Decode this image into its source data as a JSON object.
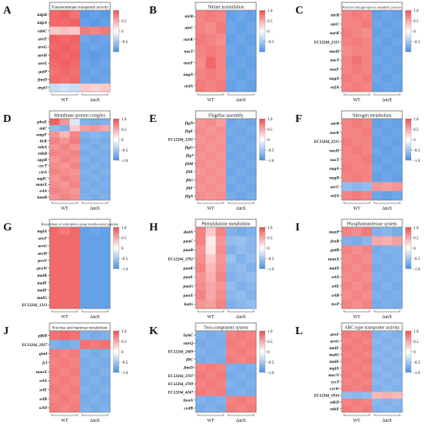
{
  "figure": {
    "colorbar_range": [
      -1.0,
      1.0
    ],
    "color_low": "#4a90e2",
    "color_mid": "#ffffff",
    "color_high": "#ef4f4f"
  },
  "chart_data": [
    {
      "type": "heatmap",
      "letter": "A",
      "title": "Transmembrane transporter activity",
      "groups": [
        "WT",
        "ΔntX"
      ],
      "rows": [
        "kdpB",
        "kdpA",
        "xdaC",
        "areF",
        "areG",
        "areH",
        "areE",
        "galP",
        "fimD",
        "argO"
      ],
      "ticks": [
        "0.5",
        "0",
        "-0.5"
      ],
      "values": [
        [
          0.85,
          0.9,
          0.8,
          -0.9,
          -0.85,
          -0.9
        ],
        [
          0.85,
          0.85,
          0.9,
          -0.85,
          -0.9,
          -0.85
        ],
        [
          0.3,
          0.35,
          0.3,
          0.75,
          0.7,
          0.75
        ],
        [
          0.9,
          0.85,
          0.9,
          -0.8,
          -0.85,
          -0.8
        ],
        [
          0.85,
          0.9,
          0.85,
          -0.85,
          -0.8,
          -0.85
        ],
        [
          0.9,
          0.85,
          0.9,
          -0.85,
          -0.9,
          -0.85
        ],
        [
          0.85,
          0.9,
          0.85,
          -0.8,
          -0.85,
          -0.8
        ],
        [
          0.8,
          0.85,
          0.8,
          -0.85,
          -0.8,
          -0.85
        ],
        [
          0.85,
          0.8,
          0.85,
          -0.8,
          -0.85,
          -0.8
        ],
        [
          -0.3,
          -0.25,
          -0.3,
          0.3,
          0.25,
          0.3
        ]
      ]
    },
    {
      "type": "heatmap",
      "letter": "B",
      "title": "Nitrate assimilation",
      "groups": [
        "WT",
        "ΔntX"
      ],
      "rows": [
        "nirB",
        "nirC",
        "narK",
        "nasT",
        "nasF",
        "nagA",
        "nrfA"
      ],
      "ticks": [
        "1.0",
        "0.5",
        "0",
        "-0.5"
      ],
      "values": [
        [
          0.7,
          0.75,
          0.7,
          -0.85,
          -0.8,
          -0.85
        ],
        [
          0.7,
          0.65,
          0.75,
          -0.8,
          -0.85,
          -0.8
        ],
        [
          0.75,
          0.7,
          0.65,
          -0.85,
          -0.8,
          -0.85
        ],
        [
          0.7,
          0.75,
          0.7,
          -0.8,
          -0.85,
          -0.8
        ],
        [
          0.65,
          0.85,
          0.7,
          -0.85,
          -0.8,
          -0.85
        ],
        [
          0.7,
          0.75,
          0.7,
          -0.8,
          -0.85,
          -0.8
        ],
        [
          0.75,
          0.7,
          0.75,
          -0.85,
          -0.8,
          -0.85
        ]
      ]
    },
    {
      "type": "heatmap",
      "letter": "C",
      "title": "Reactive nitrogen species metabolic process",
      "groups": [
        "WT",
        "ΔntX"
      ],
      "rows": [
        "nirB",
        "nirC",
        "narK",
        "EC12264_2315",
        "nasH",
        "nasT",
        "nasF",
        "nagA",
        "nrfA"
      ],
      "ticks": [
        "1.0",
        "0.5",
        "0",
        "-0.5"
      ],
      "values": [
        [
          0.7,
          0.75,
          0.7,
          -0.85,
          -0.8,
          -0.85
        ],
        [
          0.7,
          0.7,
          0.75,
          -0.8,
          -0.85,
          -0.8
        ],
        [
          0.75,
          0.7,
          0.65,
          -0.85,
          -0.8,
          -0.85
        ],
        [
          0.7,
          0.75,
          0.7,
          -0.8,
          -0.85,
          -0.8
        ],
        [
          0.65,
          0.7,
          0.7,
          -0.85,
          -0.8,
          -0.85
        ],
        [
          0.7,
          0.8,
          0.7,
          -0.8,
          -0.85,
          -0.8
        ],
        [
          0.7,
          0.75,
          0.7,
          -0.85,
          -0.8,
          -0.85
        ],
        [
          0.75,
          0.7,
          0.75,
          -0.8,
          -0.85,
          -0.8
        ],
        [
          0.7,
          0.75,
          0.7,
          -0.85,
          -0.8,
          -0.85
        ]
      ]
    },
    {
      "type": "heatmap",
      "letter": "D",
      "title": "Membrane protein complex",
      "groups": [
        "WT",
        "ΔntX"
      ],
      "rows": [
        "phoE",
        "tatC",
        "ompF",
        "livK",
        "nikA",
        "nikB",
        "oppB",
        "cycT",
        "ctrA",
        "mglC",
        "manX",
        "srlA",
        "lamB"
      ],
      "ticks": [
        "1.0",
        "0.5",
        "0",
        "-0.5",
        "-1.0"
      ],
      "values": [
        [
          0.9,
          0.6,
          -0.2,
          -0.7,
          -0.75,
          -0.7
        ],
        [
          -0.6,
          -0.7,
          0.3,
          0.55,
          0.6,
          0.5
        ],
        [
          0.6,
          0.4,
          0.7,
          -0.7,
          -0.65,
          -0.7
        ],
        [
          0.7,
          0.6,
          0.75,
          -0.75,
          -0.7,
          -0.75
        ],
        [
          0.6,
          0.7,
          0.6,
          -0.7,
          -0.75,
          -0.7
        ],
        [
          0.7,
          0.65,
          0.7,
          -0.75,
          -0.7,
          -0.75
        ],
        [
          0.6,
          0.7,
          0.65,
          -0.7,
          -0.75,
          -0.7
        ],
        [
          0.65,
          0.6,
          0.7,
          -0.75,
          -0.7,
          -0.75
        ],
        [
          0.7,
          0.65,
          0.6,
          -0.7,
          -0.75,
          -0.7
        ],
        [
          0.6,
          0.7,
          0.65,
          -0.75,
          -0.7,
          -0.75
        ],
        [
          0.65,
          0.6,
          0.7,
          -0.7,
          -0.75,
          -0.7
        ],
        [
          0.7,
          0.65,
          0.6,
          -0.75,
          -0.7,
          -0.75
        ],
        [
          0.6,
          0.7,
          0.65,
          -0.7,
          -0.75,
          -0.7
        ]
      ]
    },
    {
      "type": "heatmap",
      "letter": "E",
      "title": "Flagellar assembly",
      "groups": [
        "WT",
        "ΔntX"
      ],
      "rows": [
        "flgD",
        "flgE",
        "EC12264_1281",
        "flgG",
        "flgJ",
        "fliM",
        "fliE",
        "fliG",
        "fliF",
        "flgA"
      ],
      "ticks": [
        "1.0",
        "0.5",
        "0",
        "-0.5",
        "-1.0"
      ],
      "values": [
        [
          0.6,
          0.65,
          0.55,
          -0.8,
          -0.75,
          -0.8
        ],
        [
          0.65,
          0.6,
          0.65,
          -0.75,
          -0.8,
          -0.75
        ],
        [
          0.6,
          0.65,
          0.6,
          -0.8,
          -0.75,
          -0.8
        ],
        [
          0.65,
          0.6,
          0.65,
          -0.75,
          -0.8,
          -0.75
        ],
        [
          0.6,
          0.65,
          0.6,
          -0.8,
          -0.75,
          -0.8
        ],
        [
          0.65,
          0.6,
          0.65,
          -0.75,
          -0.8,
          -0.75
        ],
        [
          0.6,
          0.65,
          0.6,
          -0.8,
          -0.75,
          -0.8
        ],
        [
          0.65,
          0.6,
          0.65,
          -0.75,
          -0.8,
          -0.75
        ],
        [
          0.6,
          0.65,
          0.6,
          -0.8,
          -0.75,
          -0.8
        ],
        [
          0.65,
          0.6,
          0.65,
          -0.75,
          -0.8,
          -0.75
        ]
      ]
    },
    {
      "type": "heatmap",
      "letter": "F",
      "title": "Nitrogen metabolism",
      "groups": [
        "WT",
        "ΔntX"
      ],
      "rows": [
        "nirB",
        "narK",
        "EC12264_2315",
        "nasH",
        "nasT",
        "nagA",
        "nagB",
        "arcC",
        "nrfA"
      ],
      "ticks": [
        "1.0",
        "0.5",
        "0",
        "-0.5",
        "-1.0"
      ],
      "values": [
        [
          0.7,
          0.75,
          0.7,
          -0.85,
          -0.8,
          -0.85
        ],
        [
          0.7,
          0.7,
          0.75,
          -0.8,
          -0.85,
          -0.8
        ],
        [
          0.75,
          0.7,
          0.7,
          -0.85,
          -0.8,
          -0.85
        ],
        [
          0.7,
          0.75,
          0.7,
          -0.8,
          -0.85,
          -0.8
        ],
        [
          0.7,
          0.7,
          0.75,
          -0.85,
          -0.8,
          -0.85
        ],
        [
          0.75,
          0.7,
          0.7,
          -0.8,
          -0.85,
          -0.8
        ],
        [
          0.7,
          0.75,
          0.7,
          -0.85,
          -0.8,
          -0.85
        ],
        [
          -0.6,
          -0.65,
          -0.6,
          0.6,
          0.55,
          0.6
        ],
        [
          0.7,
          0.75,
          0.7,
          -0.8,
          -0.85,
          -0.8
        ]
      ]
    },
    {
      "type": "heatmap",
      "letter": "G",
      "title": "Biosynthesis of siderophore group nonribosomal peptides",
      "groups": [
        "WT",
        "ΔntX"
      ],
      "rows": [
        "mglA",
        "areF",
        "areG",
        "areH",
        "proV",
        "proW",
        "malK",
        "malE",
        "malF",
        "malG",
        "EC12264_1213"
      ],
      "ticks": [
        "1.0",
        "0.5",
        "0",
        "-0.5",
        "-1.0"
      ],
      "values": [
        [
          0.85,
          0.75,
          0.85,
          -0.85,
          -0.8,
          -0.85
        ],
        [
          0.85,
          0.85,
          0.85,
          -0.85,
          -0.85,
          -0.85
        ],
        [
          0.85,
          0.85,
          0.85,
          -0.85,
          -0.85,
          -0.85
        ],
        [
          0.85,
          0.85,
          0.85,
          -0.85,
          -0.85,
          -0.85
        ],
        [
          0.85,
          0.85,
          0.85,
          -0.85,
          -0.85,
          -0.85
        ],
        [
          0.85,
          0.85,
          0.85,
          -0.85,
          -0.85,
          -0.85
        ],
        [
          0.85,
          0.85,
          0.85,
          -0.85,
          -0.85,
          -0.85
        ],
        [
          0.85,
          0.85,
          0.85,
          -0.85,
          -0.85,
          -0.85
        ],
        [
          0.85,
          0.85,
          0.85,
          -0.85,
          -0.85,
          -0.85
        ],
        [
          0.85,
          0.85,
          0.85,
          -0.85,
          -0.85,
          -0.85
        ],
        [
          0.85,
          0.85,
          0.85,
          -0.85,
          -0.85,
          -0.85
        ]
      ]
    },
    {
      "type": "heatmap",
      "letter": "H",
      "title": "Phenylalanine metabolism",
      "groups": [
        "WT",
        "ΔntX"
      ],
      "rows": [
        "dadA",
        "paaC",
        "paaB",
        "EC12264_3792",
        "paaK",
        "paaE",
        "paaG",
        "paaX",
        "katG"
      ],
      "ticks": [
        "1.0",
        "0.5",
        "0",
        "-0.5",
        "-1.0"
      ],
      "values": [
        [
          0.7,
          0.3,
          0.7,
          -0.7,
          -0.75,
          -0.7
        ],
        [
          0.7,
          0.1,
          0.6,
          -0.6,
          -0.55,
          -0.65
        ],
        [
          0.6,
          0.15,
          0.65,
          -0.7,
          -0.6,
          -0.65
        ],
        [
          0.65,
          0.3,
          0.6,
          -0.55,
          -0.7,
          -0.6
        ],
        [
          0.7,
          0.4,
          0.65,
          -0.65,
          -0.6,
          -0.7
        ],
        [
          0.6,
          0.45,
          0.7,
          -0.7,
          -0.65,
          -0.6
        ],
        [
          0.65,
          0.5,
          0.6,
          -0.6,
          -0.7,
          -0.65
        ],
        [
          0.7,
          0.5,
          0.65,
          -0.65,
          -0.6,
          -0.7
        ],
        [
          0.6,
          0.55,
          0.7,
          -0.7,
          -0.65,
          -0.6
        ]
      ]
    },
    {
      "type": "heatmap",
      "letter": "I",
      "title": "Phosphotransferase system",
      "groups": [
        "WT",
        "ΔntX"
      ],
      "rows": [
        "mazP",
        "fruB",
        "gatB",
        "manX",
        "malX",
        "srlA",
        "srlE",
        "srlB",
        "treP"
      ],
      "ticks": [
        "1.0",
        "0.5",
        "0",
        "-0.5",
        "-1.0"
      ],
      "values": [
        [
          0.7,
          0.65,
          0.75,
          -0.7,
          -0.65,
          -0.75
        ],
        [
          -0.7,
          -0.75,
          -0.65,
          0.5,
          0.45,
          0.55
        ],
        [
          0.7,
          0.65,
          0.7,
          -0.75,
          -0.7,
          -0.7
        ],
        [
          0.65,
          0.7,
          0.65,
          -0.7,
          -0.75,
          -0.7
        ],
        [
          0.7,
          0.65,
          0.7,
          -0.75,
          -0.7,
          -0.75
        ],
        [
          0.65,
          0.7,
          0.65,
          -0.7,
          -0.75,
          -0.7
        ],
        [
          0.7,
          0.65,
          0.7,
          -0.75,
          -0.7,
          -0.75
        ],
        [
          0.65,
          0.7,
          0.65,
          -0.7,
          -0.75,
          -0.7
        ],
        [
          0.7,
          0.65,
          0.7,
          -0.75,
          -0.7,
          -0.75
        ]
      ]
    },
    {
      "type": "heatmap",
      "letter": "J",
      "title": "Fructose and mannose metabolism",
      "groups": [
        "WT",
        "ΔntX"
      ],
      "rows": [
        "pfkB",
        "EC12264_2927",
        "gmd",
        "fcl",
        "manX",
        "srlA",
        "srlE",
        "srlB",
        "srlD"
      ],
      "ticks": [
        "1.0",
        "0.5",
        "0",
        "-0.5",
        "-1.0"
      ],
      "values": [
        [
          0.8,
          0.85,
          0.8,
          -0.7,
          -0.75,
          -0.7
        ],
        [
          -0.7,
          -0.75,
          -0.7,
          0.8,
          0.75,
          0.8
        ],
        [
          0.75,
          0.7,
          0.75,
          -0.7,
          -0.75,
          -0.7
        ],
        [
          0.7,
          0.75,
          0.7,
          -0.75,
          -0.7,
          -0.75
        ],
        [
          0.75,
          0.7,
          0.75,
          -0.7,
          -0.75,
          -0.7
        ],
        [
          0.7,
          0.75,
          0.7,
          -0.75,
          -0.7,
          -0.75
        ],
        [
          0.75,
          0.7,
          0.75,
          -0.7,
          -0.75,
          -0.7
        ],
        [
          0.7,
          0.75,
          0.7,
          -0.75,
          -0.7,
          -0.75
        ],
        [
          0.75,
          0.7,
          0.75,
          -0.7,
          -0.75,
          -0.7
        ]
      ]
    },
    {
      "type": "heatmap",
      "letter": "K",
      "title": "Two-component system",
      "groups": [
        "WT",
        "ΔntX"
      ],
      "rows": [
        "hybC",
        "narQ",
        "EC12264_2689",
        "fliC",
        "fimD",
        "EC12264_3707",
        "EC12264_3709",
        "EC12264_4247",
        "hyaA",
        "cydB"
      ],
      "ticks": [
        "1.0",
        "0.5",
        "0",
        "-0.5",
        "-1.0"
      ],
      "values": [
        [
          -0.7,
          -0.75,
          -0.7,
          0.7,
          0.75,
          0.7
        ],
        [
          -0.75,
          -0.7,
          -0.75,
          0.75,
          0.7,
          0.75
        ],
        [
          -0.7,
          -0.75,
          -0.7,
          0.7,
          0.75,
          0.7
        ],
        [
          -0.75,
          -0.7,
          -0.75,
          0.75,
          0.7,
          0.75
        ],
        [
          0.7,
          0.75,
          0.7,
          -0.7,
          -0.75,
          -0.7
        ],
        [
          0.75,
          0.7,
          0.75,
          -0.75,
          -0.7,
          -0.75
        ],
        [
          0.7,
          0.75,
          0.7,
          -0.7,
          -0.75,
          -0.7
        ],
        [
          0.75,
          0.7,
          0.75,
          -0.75,
          -0.7,
          -0.75
        ],
        [
          -0.7,
          -0.75,
          -0.7,
          0.7,
          0.75,
          0.7
        ],
        [
          -0.75,
          -0.7,
          -0.75,
          0.75,
          0.7,
          0.75
        ]
      ]
    },
    {
      "type": "heatmap",
      "letter": "L",
      "title": "ABC-type transporter activity",
      "groups": [
        "WT",
        "ΔntX"
      ],
      "rows": [
        "areF",
        "areG",
        "malF",
        "malG",
        "malE",
        "mglA",
        "mocN",
        "cysT",
        "cysW",
        "EC12264_0916",
        "nikD",
        "nikE"
      ],
      "ticks": [
        "1.0",
        "0.5",
        "0",
        "-0.5",
        "-1.0"
      ],
      "values": [
        [
          0.75,
          0.7,
          0.75,
          -0.7,
          -0.65,
          -0.7
        ],
        [
          0.7,
          0.75,
          0.7,
          -0.65,
          -0.7,
          -0.65
        ],
        [
          0.75,
          0.7,
          0.75,
          -0.7,
          -0.65,
          -0.7
        ],
        [
          0.7,
          0.75,
          0.7,
          -0.65,
          -0.7,
          -0.65
        ],
        [
          0.75,
          0.7,
          0.75,
          -0.7,
          -0.65,
          -0.7
        ],
        [
          0.7,
          0.75,
          0.7,
          -0.65,
          -0.7,
          -0.65
        ],
        [
          0.75,
          0.7,
          0.75,
          -0.7,
          -0.65,
          -0.7
        ],
        [
          0.7,
          0.75,
          0.7,
          -0.65,
          -0.7,
          -0.65
        ],
        [
          0.75,
          0.7,
          0.75,
          -0.7,
          -0.65,
          -0.7
        ],
        [
          -0.6,
          -0.65,
          -0.6,
          0.4,
          0.45,
          0.4
        ],
        [
          0.7,
          0.75,
          0.7,
          -0.65,
          -0.7,
          -0.65
        ],
        [
          0.75,
          0.7,
          0.75,
          -0.7,
          -0.65,
          -0.7
        ]
      ]
    }
  ]
}
